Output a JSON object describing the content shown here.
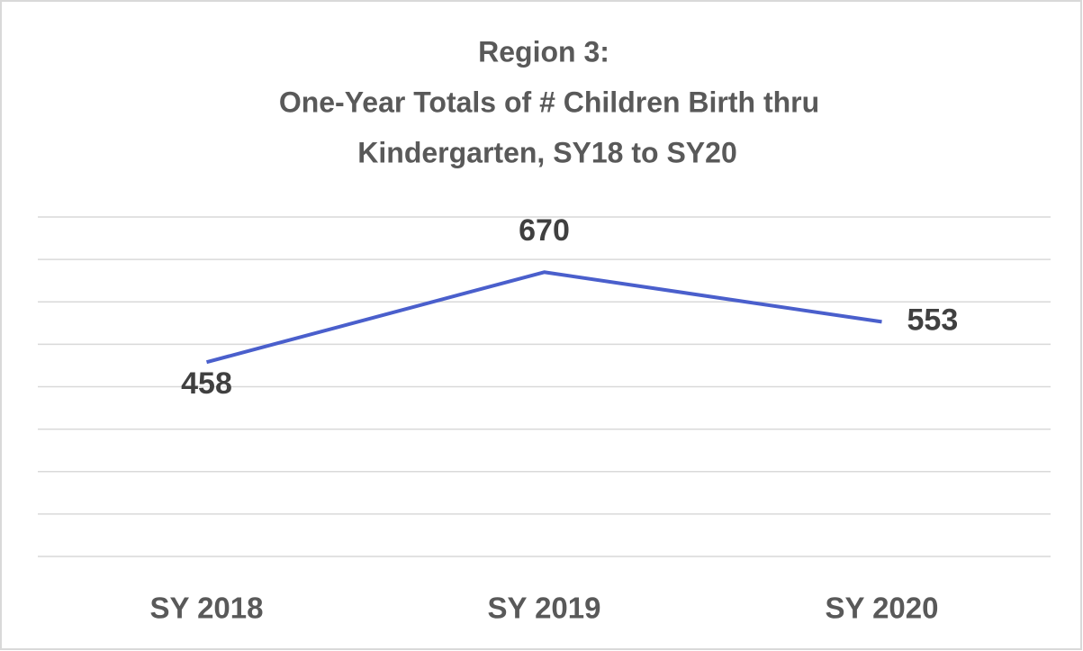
{
  "chart_data": {
    "type": "line",
    "title": [
      "Region 3:",
      "One-Year Totals of # Children Birth thru",
      "Kindergarten, SY18 to SY20"
    ],
    "categories": [
      "SY 2018",
      "SY 2019",
      "SY 2020"
    ],
    "series": [
      {
        "name": "Children",
        "color": "#4a5fcc",
        "values": [
          458,
          670,
          553
        ]
      }
    ],
    "ylim": [
      0,
      800
    ],
    "yticks": [
      0,
      100,
      200,
      300,
      400,
      500,
      600,
      700,
      800
    ],
    "grid": true
  }
}
